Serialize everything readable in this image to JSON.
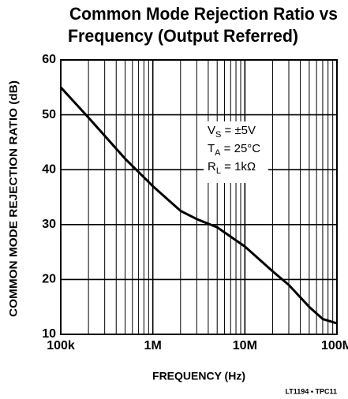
{
  "chart_data": {
    "type": "line",
    "title": [
      "Common Mode Rejection Ratio vs",
      "Frequency (Output Referred)"
    ],
    "xlabel": "FREQUENCY (Hz)",
    "ylabel": "COMMON MODE REJECTION RATIO (dB)",
    "footnote": "LT1194 • TPC11",
    "xscale": "log",
    "grid": true,
    "xlim": [
      100000,
      100000000
    ],
    "ylim": [
      10,
      60
    ],
    "xticks": [
      {
        "value": 100000,
        "label": "100k"
      },
      {
        "value": 1000000,
        "label": "1M"
      },
      {
        "value": 10000000,
        "label": "10M"
      },
      {
        "value": 100000000,
        "label": "100M"
      }
    ],
    "minor_xticks": [
      200000,
      300000,
      400000,
      500000,
      600000,
      700000,
      800000,
      900000,
      2000000,
      3000000,
      4000000,
      5000000,
      6000000,
      7000000,
      8000000,
      9000000,
      20000000,
      30000000,
      40000000,
      50000000,
      60000000,
      70000000,
      80000000,
      90000000
    ],
    "yticks": [
      10,
      20,
      30,
      40,
      50,
      60
    ],
    "annotations": [
      {
        "main": "V",
        "sub": "S",
        "rest": " = ±5V"
      },
      {
        "main": "T",
        "sub": "A",
        "rest": " = 25°C"
      },
      {
        "main": "R",
        "sub": "L",
        "rest": " = 1kΩ"
      }
    ],
    "series": [
      {
        "color": "#000000",
        "x": [
          100000,
          200000,
          500000,
          1000000,
          2000000,
          3000000,
          5000000,
          10000000,
          20000000,
          30000000,
          50000000,
          70000000,
          100000000
        ],
        "values": [
          55,
          49.5,
          42,
          37,
          32.5,
          31,
          29.5,
          26,
          21.5,
          19,
          15,
          12.8,
          12
        ]
      }
    ]
  }
}
